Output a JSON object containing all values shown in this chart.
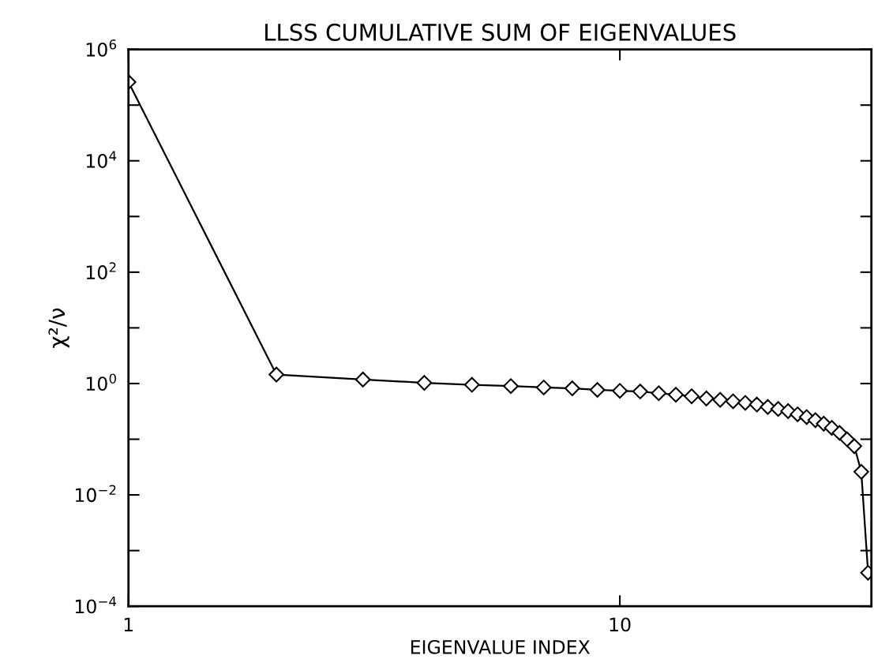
{
  "chart_data": {
    "type": "line",
    "title": "LLSS CUMULATIVE SUM OF EIGENVALUES",
    "xlabel": "EIGENVALUE INDEX",
    "ylabel": "χ²/ν",
    "log": "xy",
    "marker": "diamond",
    "line_style": "solid",
    "grid": false,
    "legend": false,
    "xlim": [
      1,
      32.5
    ],
    "xticks": [
      1,
      10
    ],
    "ylim": [
      0.0001,
      1000000
    ],
    "yticks": [
      {
        "value": 0.0001,
        "label": "10$^{−4}$"
      },
      {
        "value": 0.001,
        "label": null
      },
      {
        "value": 0.01,
        "label": "10$^{−2}$"
      },
      {
        "value": 0.1,
        "label": null
      },
      {
        "value": 1,
        "label": "10$^{0}$"
      },
      {
        "value": 10,
        "label": null
      },
      {
        "value": 100,
        "label": "10$^{2}$"
      },
      {
        "value": 1000,
        "label": null
      },
      {
        "value": 10000,
        "label": "10$^{4}$"
      },
      {
        "value": 100000,
        "label": null
      },
      {
        "value": 1000000,
        "label": "10$^{6}$"
      }
    ],
    "x": [
      1,
      2,
      3,
      4,
      5,
      6,
      7,
      8,
      9,
      10,
      11,
      12,
      13,
      14,
      15,
      16,
      17,
      18,
      19,
      20,
      21,
      22,
      23,
      24,
      25,
      26,
      27,
      28,
      29,
      30,
      31,
      32
    ],
    "series": [
      {
        "color": "#000000",
        "values": [
          260000,
          1.45,
          1.18,
          1.03,
          0.95,
          0.9,
          0.85,
          0.82,
          0.77,
          0.74,
          0.72,
          0.67,
          0.63,
          0.59,
          0.54,
          0.51,
          0.48,
          0.45,
          0.42,
          0.38,
          0.35,
          0.32,
          0.28,
          0.25,
          0.22,
          0.19,
          0.16,
          0.13,
          0.1,
          0.075,
          0.026,
          0.0004
        ]
      }
    ]
  }
}
